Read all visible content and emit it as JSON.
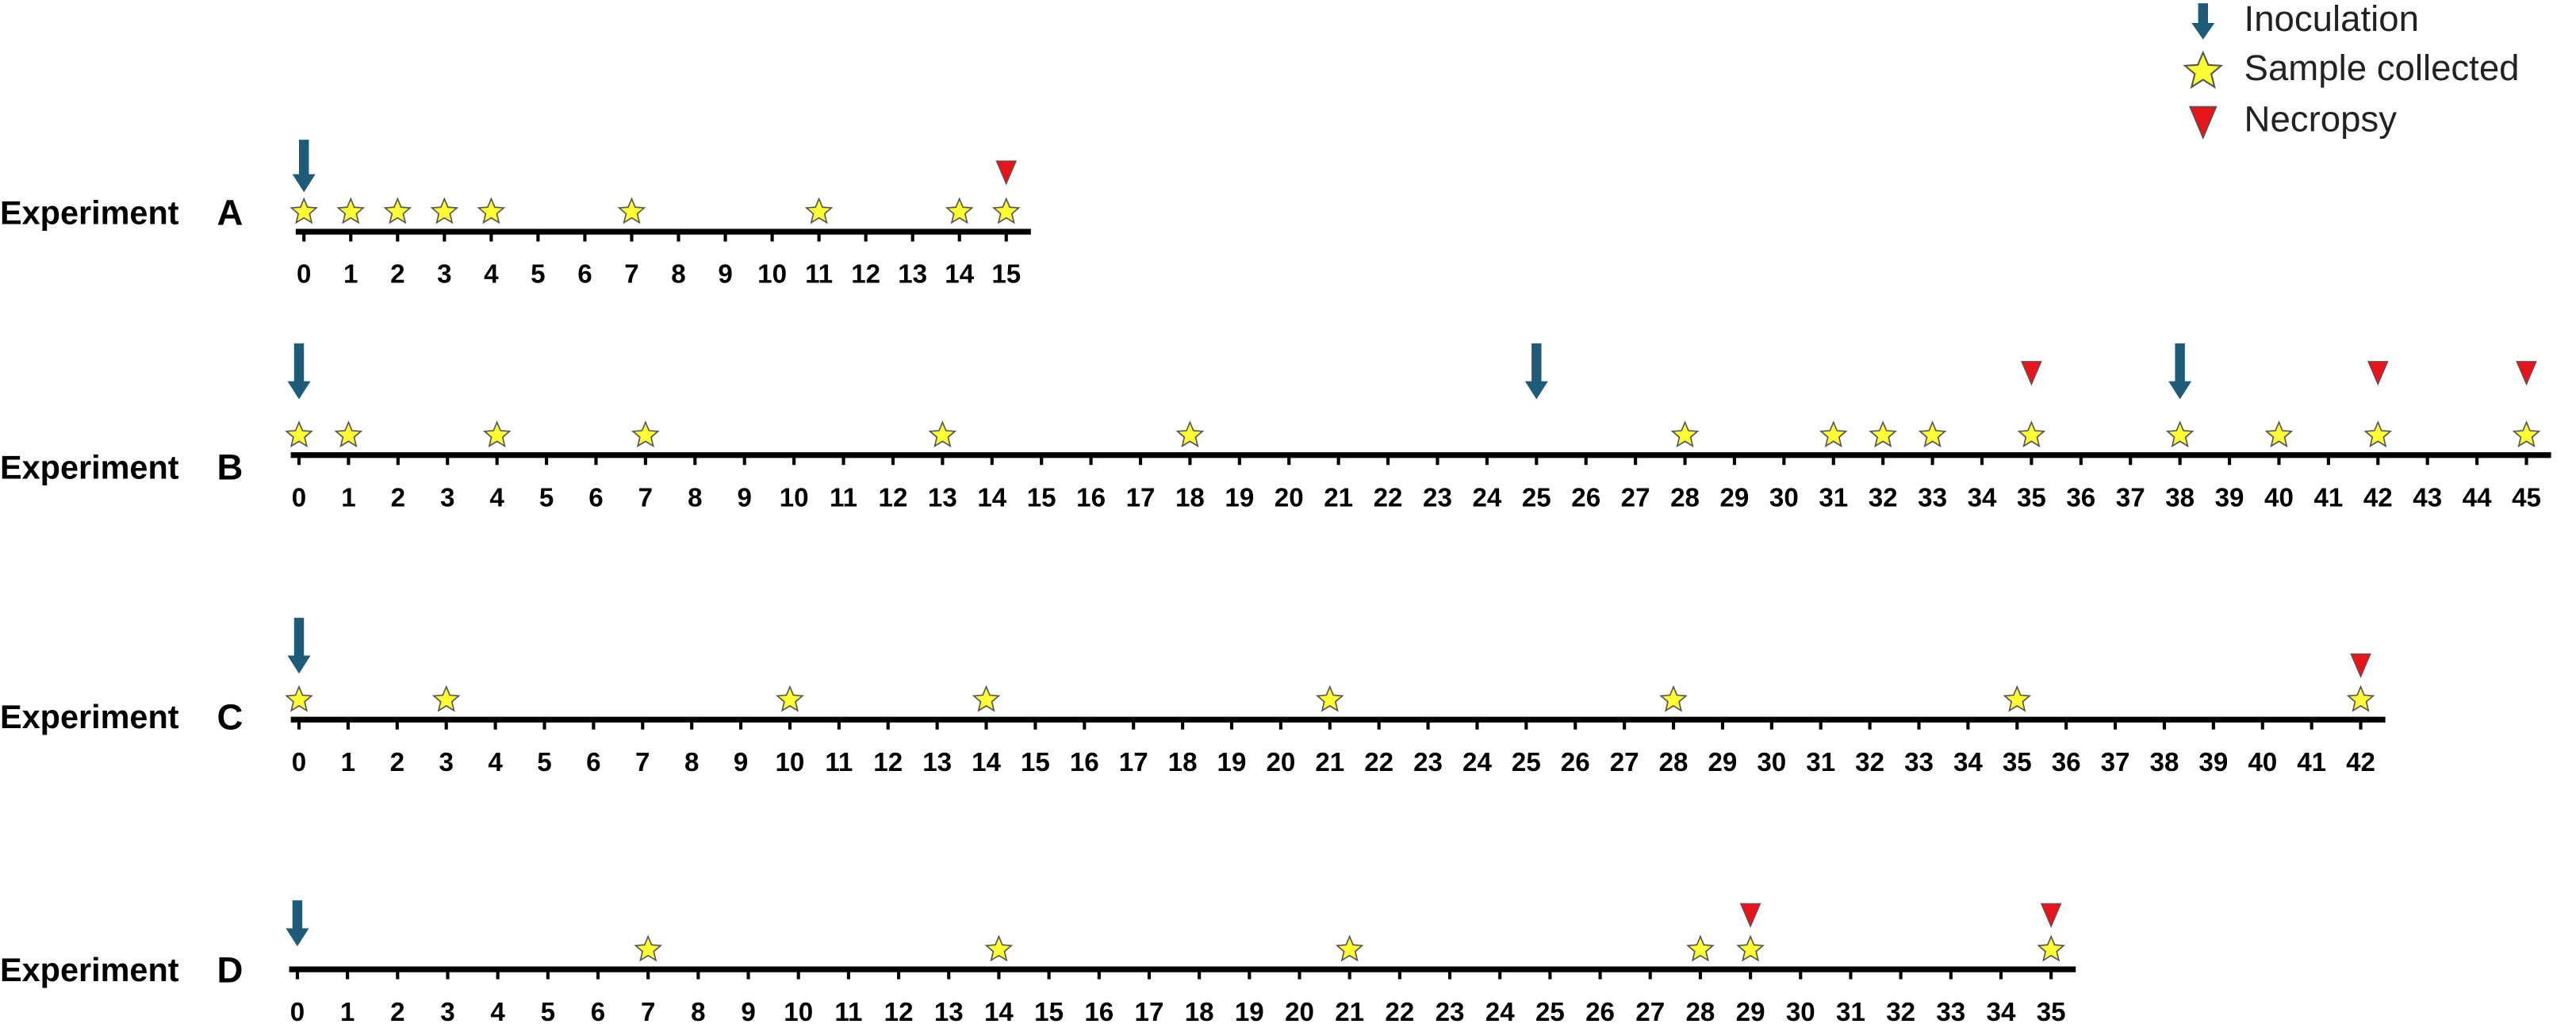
{
  "legend": {
    "inoculation": "Inoculation",
    "sample": "Sample collected",
    "necropsy": "Necropsy"
  },
  "experiments": [
    {
      "name": "Experiment",
      "letter": "A",
      "ticks": [
        0,
        1,
        2,
        3,
        4,
        5,
        6,
        7,
        8,
        9,
        10,
        11,
        12,
        13,
        14,
        15
      ],
      "inoculation": [
        0
      ],
      "samples": [
        0,
        1,
        2,
        3,
        4,
        7,
        11,
        14,
        15
      ],
      "necropsy": [
        15
      ]
    },
    {
      "name": "Experiment",
      "letter": "B",
      "ticks": [
        0,
        1,
        2,
        3,
        4,
        5,
        6,
        7,
        8,
        9,
        10,
        11,
        12,
        13,
        14,
        15,
        16,
        17,
        18,
        19,
        20,
        21,
        22,
        23,
        24,
        25,
        26,
        27,
        28,
        29,
        30,
        31,
        32,
        33,
        34,
        35,
        36,
        37,
        38,
        39,
        40,
        41,
        42,
        43,
        44,
        45
      ],
      "inoculation": [
        0,
        25,
        38
      ],
      "samples": [
        0,
        1,
        4,
        7,
        13,
        18,
        28,
        31,
        32,
        33,
        35,
        38,
        40,
        42,
        45
      ],
      "necropsy": [
        35,
        42,
        45
      ]
    },
    {
      "name": "Experiment",
      "letter": "C",
      "ticks": [
        0,
        1,
        2,
        3,
        4,
        5,
        6,
        7,
        8,
        9,
        10,
        11,
        12,
        13,
        14,
        15,
        16,
        17,
        18,
        19,
        20,
        21,
        22,
        23,
        24,
        25,
        26,
        27,
        28,
        29,
        30,
        31,
        32,
        33,
        34,
        35,
        36,
        37,
        38,
        39,
        40,
        41,
        42
      ],
      "inoculation": [
        0
      ],
      "samples": [
        0,
        3,
        10,
        14,
        21,
        28,
        35,
        42
      ],
      "necropsy": [
        42
      ]
    },
    {
      "name": "Experiment",
      "letter": "D",
      "ticks": [
        0,
        1,
        2,
        3,
        4,
        5,
        6,
        7,
        8,
        9,
        10,
        11,
        12,
        13,
        14,
        15,
        16,
        17,
        18,
        19,
        20,
        21,
        22,
        23,
        24,
        25,
        26,
        27,
        28,
        29,
        30,
        31,
        32,
        33,
        34,
        35
      ],
      "inoculation": [
        0
      ],
      "samples": [
        7,
        14,
        21,
        28,
        29,
        35
      ],
      "necropsy": [
        29,
        35
      ]
    }
  ]
}
